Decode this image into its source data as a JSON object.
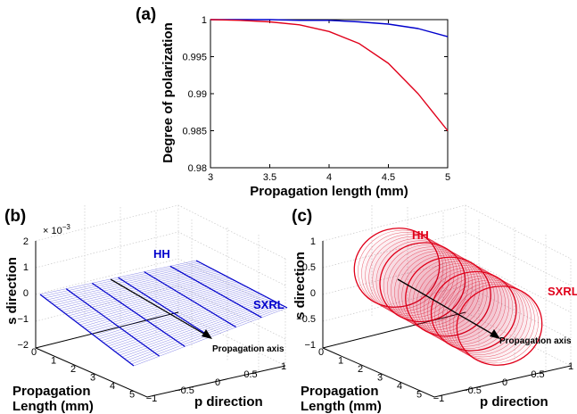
{
  "chart_data": [
    {
      "id": "a",
      "type": "line",
      "panel_label": "(a)",
      "xlabel": "Propagation length (mm)",
      "ylabel": "Degree of polarization",
      "xlim": [
        3,
        5
      ],
      "ylim": [
        0.98,
        1.0
      ],
      "xticks": [
        "3",
        "3.5",
        "4",
        "4.5",
        "5"
      ],
      "yticks": [
        "0.98",
        "0.985",
        "0.99",
        "0.995",
        "1"
      ],
      "x": [
        3.0,
        3.25,
        3.5,
        3.75,
        4.0,
        4.25,
        4.5,
        4.75,
        5.0
      ],
      "series": [
        {
          "color": "#0000cc",
          "values": [
            1.0,
            1.0,
            1.0,
            0.9999,
            0.9999,
            0.9997,
            0.9994,
            0.9988,
            0.9977
          ]
        },
        {
          "color": "#e0001a",
          "values": [
            1.0,
            0.9999,
            0.9997,
            0.9993,
            0.9984,
            0.9968,
            0.9941,
            0.99,
            0.985
          ]
        }
      ]
    },
    {
      "id": "b",
      "type": "3d-line",
      "panel_label": "(b)",
      "xlabel": "p direction",
      "ylabel": "s direction",
      "zlabel_line1": "Propagation",
      "zlabel_line2": "Length (mm)",
      "exponent": "× 10",
      "exponent_power": "−3",
      "zticks": [
        "2",
        "1",
        "0",
        "−1",
        "−2"
      ],
      "lticks": [
        "0",
        "1",
        "2",
        "3",
        "4",
        "5"
      ],
      "pticks": [
        "−1",
        "−0.5",
        "0",
        "0.5",
        "1"
      ],
      "annotations": {
        "hh": "HH",
        "sxrl": "SXRL",
        "axis": "Propagation axis"
      },
      "color": "#0000cc"
    },
    {
      "id": "c",
      "type": "3d-line",
      "panel_label": "(c)",
      "xlabel": "p direction",
      "ylabel": "s direction",
      "zlabel_line1": "Propagation",
      "zlabel_line2": "Length (mm)",
      "zticks": [
        "1",
        "0.5",
        "0",
        "−0.5",
        "−1"
      ],
      "lticks": [
        "0",
        "1",
        "2",
        "3",
        "4",
        "5"
      ],
      "pticks": [
        "−1",
        "−0.5",
        "0",
        "0.5",
        "1"
      ],
      "annotations": {
        "hh": "HH",
        "sxrl": "SXRL",
        "axis": "Propagation axis"
      },
      "color": "#e0001a"
    }
  ]
}
